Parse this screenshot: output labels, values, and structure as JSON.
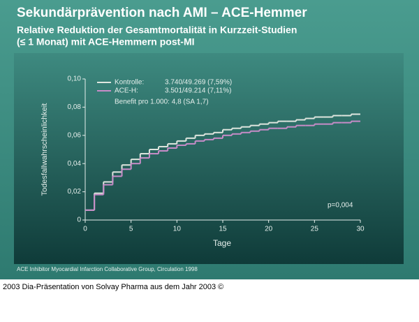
{
  "chart_data": {
    "type": "step",
    "title": "Sekundärprävention nach AMI – ACE-Hemmer",
    "subtitle": [
      "Relative Reduktion der Gesamtmortalität in Kurzzeit-Studien",
      "(≤ 1 Monat) mit ACE-Hemmern post-MI"
    ],
    "x_label": "Tage",
    "y_label": "Todesfallwahrscheinlichkeit",
    "x": [
      0,
      1,
      2,
      3,
      4,
      5,
      6,
      7,
      8,
      9,
      10,
      11,
      12,
      13,
      14,
      15,
      16,
      17,
      18,
      19,
      20,
      21,
      22,
      23,
      24,
      25,
      26,
      27,
      28,
      29
    ],
    "series": [
      {
        "name": "Kontrolle:",
        "detail": "3.740/49.269 (7,59%)",
        "color": "#dfe6df",
        "values": [
          0.007,
          0.019,
          0.027,
          0.034,
          0.039,
          0.043,
          0.047,
          0.05,
          0.052,
          0.054,
          0.056,
          0.058,
          0.06,
          0.061,
          0.062,
          0.064,
          0.065,
          0.066,
          0.067,
          0.068,
          0.069,
          0.07,
          0.07,
          0.071,
          0.072,
          0.073,
          0.073,
          0.074,
          0.074,
          0.075
        ]
      },
      {
        "name": "ACE-H:",
        "detail": "3.501/49.214 (7,11%)",
        "color": "#c88cc8",
        "values": [
          0.007,
          0.018,
          0.025,
          0.031,
          0.036,
          0.04,
          0.044,
          0.047,
          0.049,
          0.051,
          0.053,
          0.054,
          0.056,
          0.057,
          0.058,
          0.06,
          0.061,
          0.062,
          0.063,
          0.064,
          0.065,
          0.065,
          0.066,
          0.067,
          0.067,
          0.068,
          0.068,
          0.069,
          0.069,
          0.07
        ]
      }
    ],
    "legend_note": "Benefit pro 1.000: 4,8 (SA 1,7)",
    "annotation": "p=0,004",
    "xlim": [
      0,
      30
    ],
    "xticks": [
      0,
      5,
      10,
      15,
      20,
      25,
      30
    ],
    "ylim": [
      0,
      0.1
    ],
    "yticks": [
      0,
      {
        "value": 0.02,
        "label": "0,02"
      },
      {
        "value": 0.04,
        "label": "0,04"
      },
      {
        "value": 0.06,
        "label": "0,06"
      },
      {
        "value": 0.08,
        "label": "0,08"
      },
      {
        "value": 0.1,
        "label": "0,10"
      }
    ],
    "source": "ACE Inhibitor Myocardial Infarction Collaborative Group, Circulation 1998",
    "caption": "2003 Dia-Präsentation von Solvay Pharma aus dem Jahr 2003 ©"
  }
}
